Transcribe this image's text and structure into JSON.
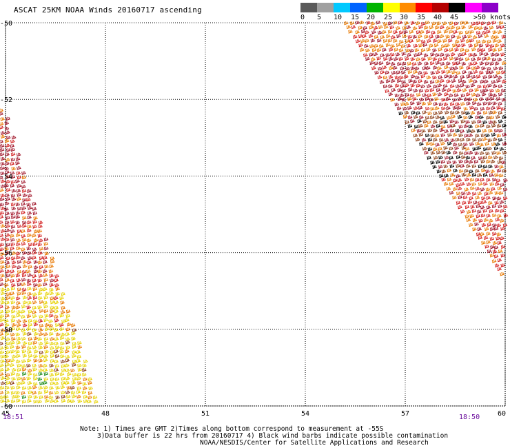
{
  "title": "ASCAT 25KM NOAA Winds 20160717 ascending",
  "colorbar": {
    "labels": [
      "0",
      "5",
      "10",
      "15",
      "20",
      "25",
      "30",
      "35",
      "40",
      "45",
      ">50 knots"
    ],
    "colors": [
      "#5a5a5a",
      "#a0a0a0",
      "#00c8ff",
      "#0064ff",
      "#00b400",
      "#ffff00",
      "#ff8c00",
      "#ff0000",
      "#b40000",
      "#000000",
      "#ff00ff",
      "#8c00c8"
    ]
  },
  "map": {
    "lat_labels": [
      "-50",
      "-52",
      "-54",
      "-56",
      "-58",
      "-60"
    ],
    "lon_labels": [
      "45",
      "48",
      "51",
      "54",
      "57",
      "60"
    ],
    "lat_range": [
      -60,
      -50
    ],
    "lon_range": [
      45,
      60
    ]
  },
  "time_labels": {
    "left": "18:51",
    "right": "18:50"
  },
  "notes": {
    "line1": "Note: 1) Times are GMT 2)Times along bottom correspond to measurement at -55S",
    "line2": "3)Data buffer is 22 hrs from 20160717 4) Black wind barbs indicate possible contamination",
    "line3": "NOAA/NESDIS/Center for Satellite Applications and Research"
  },
  "swaths": {
    "barb_colors": {
      "yellow": "#e6d200",
      "orange": "#e87800",
      "red": "#d21e1e",
      "darkred": "#a01428",
      "brown": "#8c3c14",
      "green": "#1e8c1e",
      "black": "#000000"
    }
  }
}
